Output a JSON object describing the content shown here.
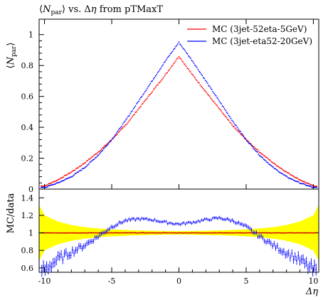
{
  "chart_data": [
    {
      "type": "scatter",
      "panel": "main",
      "title": "⟨N_par⟩ vs. Δη from pTMaxT",
      "title_parts": {
        "pre": "⟨",
        "var": "N",
        "sub": "par",
        "post": "⟩ vs. Δ",
        "eta": "η",
        "tail": " from pTMaxT"
      },
      "ylabel": "⟨N_par⟩",
      "ylabel_parts": {
        "pre": "⟨",
        "var": "N",
        "sub": "par",
        "post": "⟩"
      },
      "xlim": [
        -10.4,
        10.4
      ],
      "ylim": [
        0,
        1.1
      ],
      "yticks": [
        0,
        0.2,
        0.4,
        0.6,
        0.8,
        1
      ],
      "ytick_labels": [
        "0",
        "0.2",
        "0.4",
        "0.6",
        "0.8",
        "1"
      ],
      "x": [
        -10,
        -9,
        -8,
        -7,
        -6,
        -5,
        -4,
        -3,
        -2,
        -1,
        0,
        1,
        2,
        3,
        4,
        5,
        6,
        7,
        8,
        9,
        10
      ],
      "series": [
        {
          "name": "MC (3jet-52eta-5GeV)",
          "color": "#ff0000",
          "values": [
            0.02,
            0.06,
            0.11,
            0.17,
            0.24,
            0.32,
            0.41,
            0.52,
            0.63,
            0.74,
            0.86,
            0.74,
            0.63,
            0.52,
            0.41,
            0.32,
            0.24,
            0.17,
            0.11,
            0.06,
            0.02
          ]
        },
        {
          "name": "MC (3jet-eta52-20GeV)",
          "color": "#0000ff",
          "values": [
            0.01,
            0.04,
            0.08,
            0.14,
            0.22,
            0.32,
            0.44,
            0.57,
            0.7,
            0.83,
            0.95,
            0.83,
            0.7,
            0.57,
            0.44,
            0.32,
            0.22,
            0.14,
            0.08,
            0.04,
            0.01
          ]
        }
      ]
    },
    {
      "type": "scatter",
      "panel": "ratio",
      "ylabel": "MC/data",
      "xlabel": "Δη",
      "xlim": [
        -10.4,
        10.4
      ],
      "ylim": [
        0.55,
        1.5
      ],
      "xticks": [
        -10,
        -5,
        0,
        5,
        10
      ],
      "xtick_labels": [
        "-10",
        "-5",
        "0",
        "5",
        "10"
      ],
      "yticks": [
        0.6,
        0.8,
        1,
        1.2,
        1.4
      ],
      "ytick_labels": [
        "0.6",
        "0.8",
        "1",
        "1.2",
        "1.4"
      ],
      "band": {
        "color": "#ffff00",
        "x": [
          -10.4,
          -10,
          -9,
          -8,
          -7,
          -6,
          -5,
          -4,
          -3,
          -2,
          -1,
          0,
          1,
          2,
          3,
          4,
          5,
          6,
          7,
          8,
          9,
          10,
          10.4
        ],
        "halfwidth": [
          0.32,
          0.2,
          0.13,
          0.09,
          0.065,
          0.05,
          0.04,
          0.033,
          0.028,
          0.024,
          0.021,
          0.02,
          0.021,
          0.024,
          0.028,
          0.033,
          0.04,
          0.05,
          0.065,
          0.09,
          0.13,
          0.2,
          0.32
        ]
      },
      "x": [
        -10,
        -9,
        -8,
        -7,
        -6,
        -5,
        -4,
        -3,
        -2,
        -1,
        0,
        1,
        2,
        3,
        4,
        5,
        6,
        7,
        8,
        9,
        10
      ],
      "series": [
        {
          "name": "MC (3jet-52eta-5GeV)",
          "color": "#ff0000",
          "values": [
            1.0,
            1.0,
            1.0,
            1.0,
            1.0,
            1.0,
            1.0,
            1.0,
            1.0,
            1.0,
            1.0,
            1.0,
            1.0,
            1.0,
            1.0,
            1.0,
            1.0,
            1.0,
            1.0,
            1.0,
            1.0
          ]
        },
        {
          "name": "MC (3jet-eta52-20GeV)",
          "color": "#0000ff",
          "values": [
            0.58,
            0.7,
            0.78,
            0.86,
            0.96,
            1.07,
            1.14,
            1.16,
            1.15,
            1.12,
            1.1,
            1.12,
            1.15,
            1.17,
            1.14,
            1.07,
            0.96,
            0.86,
            0.77,
            0.69,
            0.57
          ]
        }
      ]
    }
  ]
}
